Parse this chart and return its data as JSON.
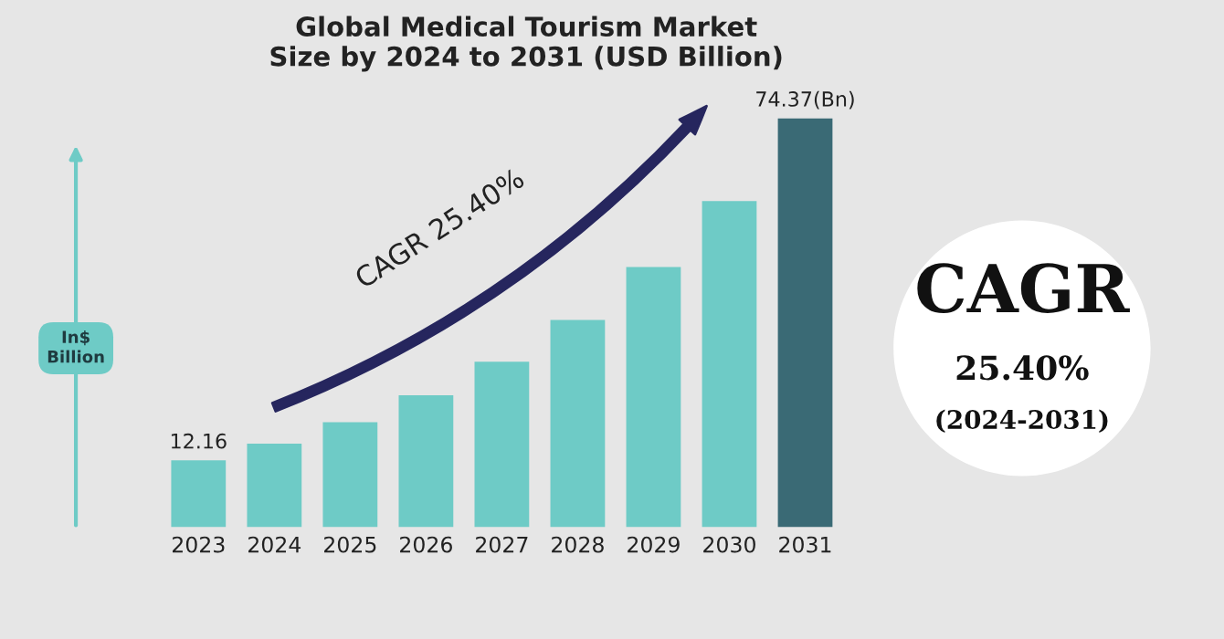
{
  "chart_data": {
    "type": "bar",
    "title": "Global Medical Tourism Market\nSize by 2024 to 2031 (USD Billion)",
    "ylabel": "In$ Billion",
    "categories": [
      "2023",
      "2024",
      "2025",
      "2026",
      "2027",
      "2028",
      "2029",
      "2030",
      "2031"
    ],
    "values": [
      12.16,
      15.2,
      19.1,
      24.0,
      30.1,
      37.7,
      47.3,
      59.3,
      74.37
    ],
    "colors": [
      "#6ecbc6",
      "#6ecbc6",
      "#6ecbc6",
      "#6ecbc6",
      "#6ecbc6",
      "#6ecbc6",
      "#6ecbc6",
      "#6ecbc6",
      "#3a6a75"
    ],
    "value_labels": [
      "12.16",
      null,
      null,
      null,
      null,
      null,
      null,
      null,
      "74.37(Bn)"
    ],
    "annotations": [
      "CAGR 25.40%",
      "CAGR",
      "25.40%",
      "(2024-2031)"
    ]
  }
}
